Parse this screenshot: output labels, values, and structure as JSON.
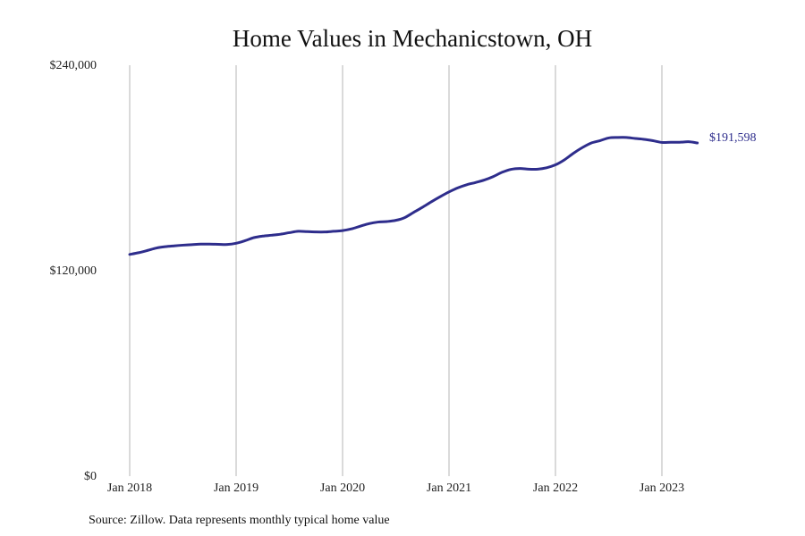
{
  "chart_data": {
    "type": "line",
    "title": "Home Values in Mechanicstown, OH",
    "xlabel": "",
    "ylabel": "",
    "ylim": [
      0,
      240000
    ],
    "y_ticks": [
      {
        "value": 0,
        "label": "$0"
      },
      {
        "value": 120000,
        "label": "$120,000"
      },
      {
        "value": 240000,
        "label": "$240,000"
      }
    ],
    "x_ticks": [
      "Jan 2018",
      "Jan 2019",
      "Jan 2020",
      "Jan 2021",
      "Jan 2022",
      "Jan 2023"
    ],
    "x_range": [
      "2018-01",
      "2023-12"
    ],
    "grid": "vertical lines at each January",
    "line_color": "#2e2d8c",
    "series": [
      {
        "x": [
          "2018-01",
          "2018-02",
          "2018-03",
          "2018-04",
          "2018-05",
          "2018-06",
          "2018-07",
          "2018-08",
          "2018-09",
          "2018-10",
          "2018-11",
          "2018-12",
          "2019-01",
          "2019-02",
          "2019-03",
          "2019-04",
          "2019-05",
          "2019-06",
          "2019-07",
          "2019-08",
          "2019-09",
          "2019-10",
          "2019-11",
          "2019-12",
          "2020-01",
          "2020-02",
          "2020-03",
          "2020-04",
          "2020-05",
          "2020-06",
          "2020-07",
          "2020-08",
          "2020-09",
          "2020-10",
          "2020-11",
          "2020-12",
          "2021-01",
          "2021-02",
          "2021-03",
          "2021-04",
          "2021-05",
          "2021-06",
          "2021-07",
          "2021-08",
          "2021-09",
          "2021-10",
          "2021-11",
          "2021-12",
          "2022-01",
          "2022-02",
          "2022-03",
          "2022-04",
          "2022-05",
          "2022-06",
          "2022-07",
          "2022-08",
          "2022-09",
          "2022-10",
          "2022-11",
          "2022-12",
          "2023-01",
          "2023-02",
          "2023-03",
          "2023-04",
          "2023-05"
        ],
        "values": [
          129500,
          130500,
          131800,
          133200,
          134000,
          134500,
          134900,
          135200,
          135500,
          135500,
          135400,
          135300,
          136000,
          137500,
          139300,
          140200,
          140700,
          141300,
          142200,
          143000,
          142800,
          142600,
          142600,
          143000,
          143400,
          144400,
          146000,
          147500,
          148400,
          148700,
          149400,
          151000,
          154000,
          157000,
          160200,
          163200,
          166000,
          168400,
          170200,
          171500,
          173000,
          175000,
          177500,
          179200,
          179700,
          179300,
          179300,
          180100,
          181800,
          184700,
          188500,
          191800,
          194500,
          195900,
          197500,
          197800,
          197800,
          197200,
          196700,
          195900,
          194900,
          195000,
          195000,
          195300,
          194600
        ]
      }
    ],
    "end_label": "$191,598"
  },
  "footer": {
    "source": "Source: Zillow. Data represents monthly typical home value"
  }
}
